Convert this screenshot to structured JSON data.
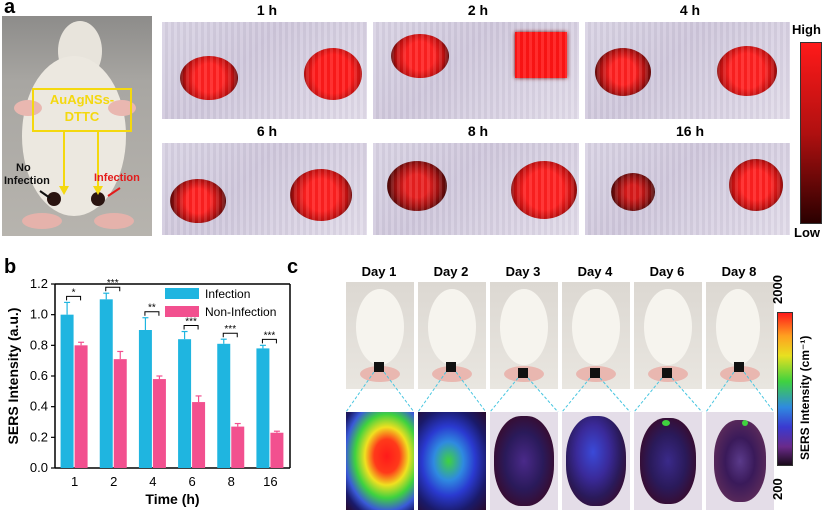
{
  "panels": {
    "a": {
      "letter": "a",
      "photo_labels": {
        "probe_line1": "AuAgNSs-",
        "probe_line2": "DTTC",
        "no_infection_line1": "No",
        "no_infection_line2": "Infection",
        "infection": "Infection"
      },
      "timepoints": [
        "1 h",
        "2 h",
        "4 h",
        "6 h",
        "8 h",
        "16 h"
      ],
      "colorbar": {
        "high": "High",
        "low": "Low"
      }
    },
    "b": {
      "letter": "b"
    },
    "c": {
      "letter": "c",
      "days": [
        "Day 1",
        "Day 2",
        "Day 3",
        "Day 4",
        "Day 6",
        "Day 8"
      ],
      "colorbar": {
        "max": "2000",
        "min": "200",
        "label": "SERS Intensity (cm⁻¹)"
      }
    }
  },
  "chart_data": {
    "type": "bar",
    "categories": [
      "1",
      "2",
      "4",
      "6",
      "8",
      "16"
    ],
    "series": [
      {
        "name": "Infection",
        "values": [
          1.0,
          1.1,
          0.9,
          0.84,
          0.81,
          0.78
        ],
        "errors": [
          0.08,
          0.04,
          0.08,
          0.05,
          0.03,
          0.02
        ],
        "color": "#1fb5e0"
      },
      {
        "name": "Non-Infection",
        "values": [
          0.8,
          0.71,
          0.58,
          0.43,
          0.27,
          0.23
        ],
        "errors": [
          0.02,
          0.05,
          0.02,
          0.04,
          0.02,
          0.01
        ],
        "color": "#f2508f"
      }
    ],
    "significance": [
      "*",
      "***",
      "**",
      "***",
      "***",
      "***"
    ],
    "xlabel": "Time (h)",
    "ylabel": "SERS Intensity (a.u.)",
    "ylim": [
      0.0,
      1.2
    ],
    "yticks": [
      "0.0",
      "0.2",
      "0.4",
      "0.6",
      "0.8",
      "1.0",
      "1.2"
    ],
    "legend": "top-right"
  }
}
